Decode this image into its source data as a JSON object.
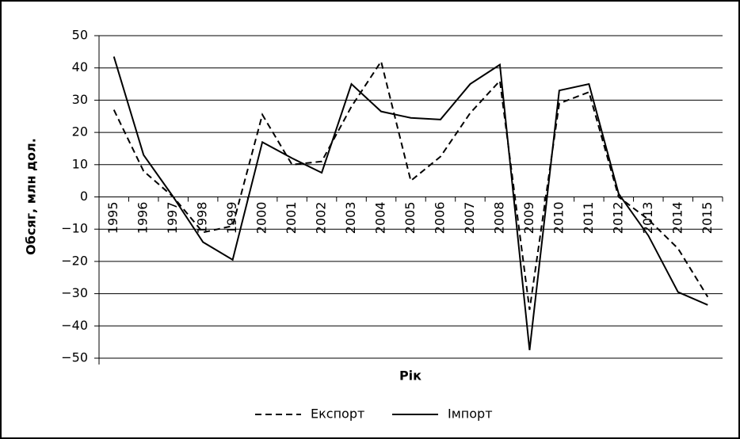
{
  "chart_data": {
    "type": "line",
    "ylabel": "Обсяг, млн дол.",
    "xlabel": "Рік",
    "categories": [
      "1995",
      "1996",
      "1997",
      "1998",
      "1999",
      "2000",
      "2001",
      "2002",
      "2003",
      "2004",
      "2005",
      "2006",
      "2007",
      "2008",
      "2009",
      "2010",
      "2011",
      "2012",
      "2013",
      "2014",
      "2015"
    ],
    "series": [
      {
        "name": "Експорт",
        "color": "#000000",
        "dash": "dashed",
        "values": [
          27,
          8,
          0,
          -11,
          -9,
          25.5,
          10,
          11,
          28,
          42,
          5,
          12.5,
          26,
          36,
          -35,
          29,
          32.5,
          0,
          -7,
          -16,
          -31
        ]
      },
      {
        "name": "Імпорт",
        "color": "#000000",
        "dash": "solid",
        "values": [
          43.5,
          13,
          0,
          -14,
          -19.5,
          17,
          12,
          7.5,
          35,
          26.5,
          24.5,
          24,
          35,
          41,
          -47.5,
          33,
          35,
          1,
          -12,
          -29.5,
          -33.5
        ]
      }
    ],
    "ylim": [
      -50,
      50
    ],
    "yticks": [
      {
        "value": -50,
        "label": "−50"
      },
      {
        "value": -40,
        "label": "−40"
      },
      {
        "value": -30,
        "label": "−30"
      },
      {
        "value": -20,
        "label": "−20"
      },
      {
        "value": -10,
        "label": "−10"
      },
      0,
      10,
      20,
      30,
      40,
      50
    ],
    "grid": true,
    "legend": "bottom"
  }
}
